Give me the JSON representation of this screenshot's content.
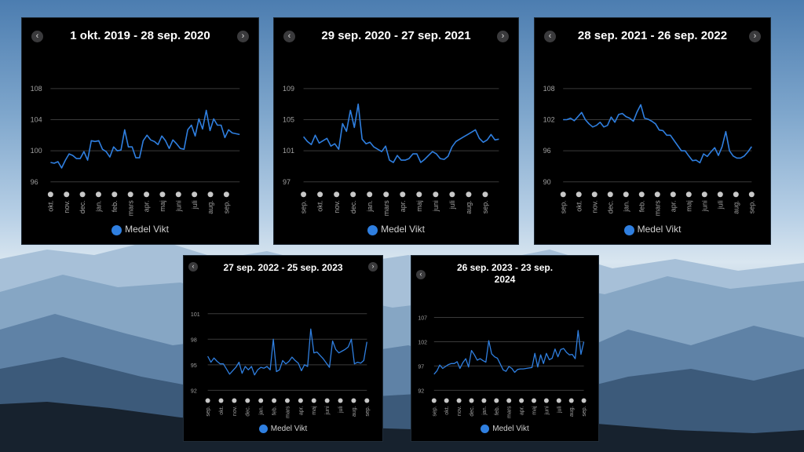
{
  "legend_label": "Medel Vikt",
  "colors": {
    "line": "#2f7fe0",
    "grid": "#3a3a3a",
    "dot": "#c8c8c8",
    "tick": "#a0a0a0"
  },
  "chart_data": [
    {
      "type": "line",
      "title": "1 okt. 2019 - 28 sep. 2020",
      "yticks": [
        96,
        100,
        104,
        108
      ],
      "ylim": [
        96,
        108
      ],
      "months": [
        "okt.",
        "nov.",
        "dec.",
        "jan.",
        "feb.",
        "mars",
        "apr.",
        "maj",
        "juni",
        "juli",
        "aug.",
        "sep."
      ],
      "series": [
        {
          "name": "Medel Vikt",
          "values": [
            98.5,
            98.4,
            98.6,
            97.8,
            98.8,
            99.6,
            99.4,
            99.0,
            99.0,
            99.9,
            98.8,
            101.3,
            101.2,
            101.3,
            100.2,
            99.9,
            99.2,
            100.5,
            100.0,
            100.1,
            102.7,
            100.5,
            100.5,
            99.1,
            99.1,
            101.3,
            102.0,
            101.4,
            101.2,
            100.8,
            101.9,
            101.3,
            100.3,
            101.4,
            100.9,
            100.3,
            100.2,
            102.7,
            103.3,
            101.9,
            104.1,
            102.8,
            105.2,
            102.6,
            104.1,
            103.3,
            103.3,
            101.7,
            102.7,
            102.3,
            102.2,
            102.1
          ]
        }
      ]
    },
    {
      "type": "line",
      "title": "29 sep. 2020 - 27 sep. 2021",
      "yticks": [
        97,
        101,
        105,
        109
      ],
      "ylim": [
        97,
        109
      ],
      "months": [
        "sep.",
        "okt.",
        "nov.",
        "dec.",
        "jan.",
        "mars",
        "apr.",
        "maj",
        "juni",
        "juli",
        "aug.",
        "sep."
      ],
      "series": [
        {
          "name": "Medel Vikt",
          "values": [
            102.8,
            102.2,
            101.8,
            103.0,
            102.0,
            102.3,
            102.6,
            101.6,
            101.9,
            101.2,
            104.5,
            103.5,
            106.2,
            104.0,
            107.0,
            102.5,
            101.9,
            102.1,
            101.5,
            101.2,
            100.9,
            101.6,
            99.8,
            99.5,
            100.4,
            99.8,
            99.8,
            100.0,
            100.6,
            100.6,
            99.5,
            99.9,
            100.4,
            100.9,
            100.6,
            100.0,
            99.9,
            100.3,
            101.5,
            102.2,
            102.5,
            102.8,
            103.1,
            103.4,
            103.7,
            102.6,
            102.1,
            102.4,
            103.1,
            102.4,
            102.5
          ]
        }
      ]
    },
    {
      "type": "line",
      "title": "28 sep. 2021 - 26 sep. 2022",
      "yticks": [
        90,
        96,
        102,
        108
      ],
      "ylim": [
        90,
        108
      ],
      "months": [
        "sep.",
        "okt.",
        "nov.",
        "dec.",
        "jan.",
        "feb.",
        "mars",
        "apr.",
        "maj",
        "juni",
        "juli",
        "aug.",
        "sep."
      ],
      "series": [
        {
          "name": "Medel Vikt",
          "values": [
            102.0,
            102.0,
            102.3,
            101.8,
            102.6,
            103.4,
            102.0,
            101.2,
            100.6,
            100.9,
            101.5,
            100.6,
            100.9,
            102.5,
            101.5,
            103.0,
            103.2,
            102.6,
            102.3,
            101.7,
            103.5,
            104.9,
            102.3,
            102.1,
            101.7,
            101.2,
            100.0,
            99.9,
            99.0,
            99.0,
            98.0,
            97.0,
            96.0,
            96.0,
            95.0,
            94.1,
            94.2,
            93.7,
            95.4,
            94.9,
            95.8,
            96.6,
            95.1,
            96.8,
            99.7,
            96.0,
            95.0,
            94.6,
            94.6,
            95.0,
            95.8,
            96.8
          ]
        }
      ]
    },
    {
      "type": "line",
      "title": "27 sep. 2022 - 25 sep. 2023",
      "yticks": [
        92,
        95,
        98,
        101
      ],
      "ylim": [
        92,
        101
      ],
      "months": [
        "sep.",
        "okt.",
        "nov.",
        "dec.",
        "jan.",
        "feb.",
        "mars",
        "apr.",
        "maj",
        "juni",
        "juli",
        "aug.",
        "sep."
      ],
      "series": [
        {
          "name": "Medel Vikt",
          "values": [
            96.0,
            95.3,
            95.8,
            95.4,
            95.1,
            95.1,
            94.5,
            93.9,
            94.3,
            94.7,
            95.3,
            94.0,
            94.8,
            94.4,
            94.8,
            93.8,
            94.4,
            94.7,
            94.6,
            94.8,
            94.4,
            98.0,
            94.2,
            94.4,
            95.5,
            95.1,
            95.4,
            95.9,
            95.5,
            95.2,
            94.3,
            95.0,
            94.8,
            99.2,
            96.4,
            96.5,
            96.1,
            95.7,
            95.2,
            94.7,
            97.8,
            96.8,
            96.4,
            96.6,
            96.8,
            97.1,
            98.0,
            95.1,
            95.3,
            95.2,
            95.5,
            97.7
          ]
        }
      ]
    },
    {
      "type": "line",
      "title": "26 sep. 2023 - 23 sep. 2024",
      "yticks": [
        92,
        97,
        102,
        107
      ],
      "ylim": [
        92,
        107
      ],
      "months": [
        "sep.",
        "okt.",
        "nov.",
        "dec.",
        "jan.",
        "feb.",
        "mars",
        "apr.",
        "maj",
        "juni",
        "juli",
        "aug.",
        "sep."
      ],
      "series": [
        {
          "name": "Medel Vikt",
          "values": [
            95.3,
            96.0,
            97.2,
            96.5,
            96.9,
            97.3,
            97.5,
            97.5,
            97.9,
            96.5,
            97.7,
            98.5,
            96.8,
            100.2,
            99.3,
            98.2,
            98.5,
            98.1,
            97.8,
            102.2,
            99.5,
            98.9,
            98.6,
            97.4,
            96.2,
            95.9,
            96.9,
            96.5,
            95.7,
            96.3,
            96.4,
            96.4,
            96.5,
            96.6,
            96.7,
            99.6,
            96.8,
            99.3,
            97.5,
            99.6,
            98.3,
            98.6,
            100.5,
            98.9,
            100.4,
            100.6,
            99.8,
            99.3,
            99.4,
            98.5,
            104.3,
            99.4,
            102.0
          ]
        }
      ]
    }
  ]
}
